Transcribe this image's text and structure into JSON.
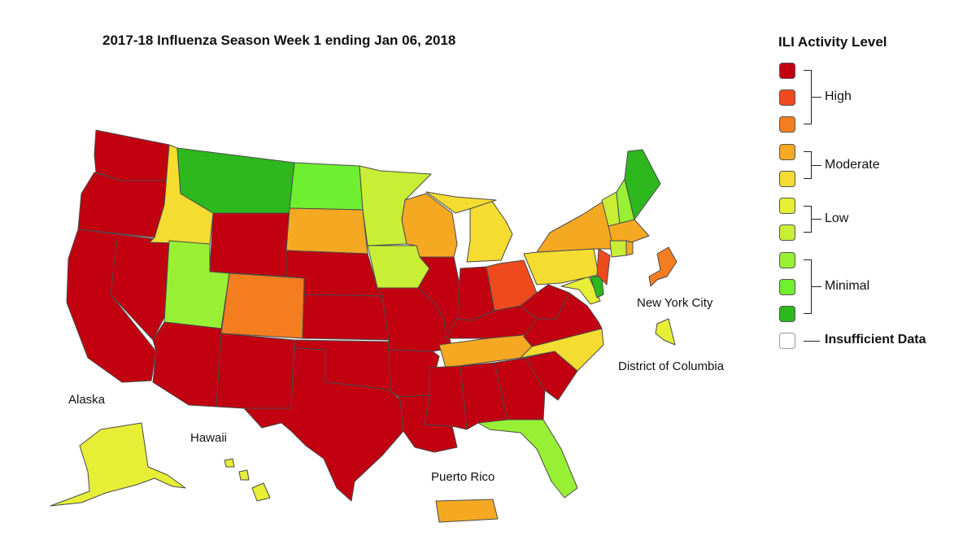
{
  "title": "2017-18 Influenza Season Week 1 ending Jan 06, 2018",
  "legend": {
    "title": "ILI Activity Level",
    "levels": [
      {
        "level": 10,
        "color": "#c10010"
      },
      {
        "level": 9,
        "color": "#ee4a1e"
      },
      {
        "level": 8,
        "color": "#f47d20"
      },
      {
        "level": 7,
        "color": "#f5a922"
      },
      {
        "level": 6,
        "color": "#f4dc31"
      },
      {
        "level": 5,
        "color": "#e6ef35"
      },
      {
        "level": 4,
        "color": "#c8ef36"
      },
      {
        "level": 3,
        "color": "#98f034"
      },
      {
        "level": 2,
        "color": "#6ef030"
      },
      {
        "level": 1,
        "color": "#2db81e"
      }
    ],
    "groups": {
      "high": "High",
      "moderate": "Moderate",
      "low": "Low",
      "minimal": "Minimal"
    },
    "insufficient": {
      "label": "Insufficient Data",
      "color": "#ffffff"
    }
  },
  "labels": {
    "alaska": "Alaska",
    "hawaii": "Hawaii",
    "puerto_rico": "Puerto Rico",
    "new_york_city": "New York City",
    "dc": "District of Columbia"
  },
  "states": {
    "WA": 10,
    "OR": 10,
    "CA": 10,
    "NV": 10,
    "ID": 6,
    "MT": 1,
    "WY": 10,
    "UT": 3,
    "AZ": 10,
    "NM": 10,
    "CO": 8,
    "ND": 2,
    "SD": 7,
    "NE": 10,
    "KS": 10,
    "OK": 10,
    "TX": 10,
    "MN": 4,
    "IA": 4,
    "MO": 10,
    "AR": 10,
    "LA": 10,
    "WI": 7,
    "IL": 10,
    "MI": 6,
    "IN": 10,
    "OH": 9,
    "KY": 10,
    "TN": 7,
    "MS": 10,
    "AL": 10,
    "GA": 10,
    "FL": 3,
    "SC": 10,
    "NC": 6,
    "VA": 10,
    "WV": 10,
    "MD": 5,
    "DE": 1,
    "NJ": 9,
    "PA": 6,
    "NY": 7,
    "CT": 4,
    "RI": 7,
    "MA": 7,
    "VT": 4,
    "NH": 3,
    "ME": 1,
    "AK": 5,
    "HI": 5,
    "PR": 7,
    "NYC": 8,
    "DC": 5
  }
}
